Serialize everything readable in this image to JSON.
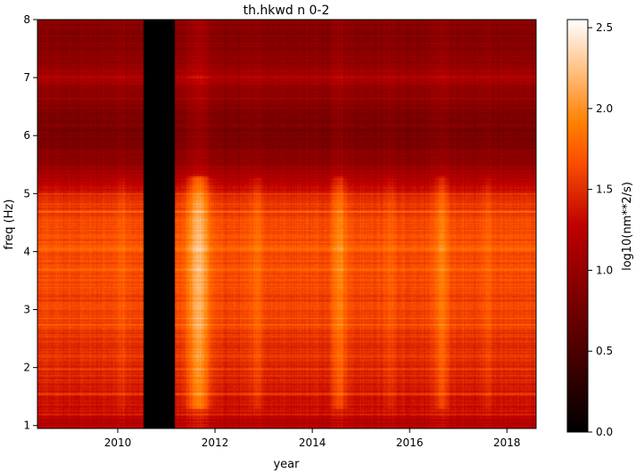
{
  "chart_data": {
    "type": "heatmap",
    "title": "th.hkwd n 0-2",
    "xlabel": "year",
    "ylabel": "freq (Hz)",
    "colorbar_label": "log10(nm**2/s)",
    "colormap": "gist_heat",
    "xlim": [
      2008.35,
      2018.6
    ],
    "ylim": [
      0.95,
      8.0
    ],
    "x_ticks": [
      2010,
      2012,
      2014,
      2016,
      2018
    ],
    "x_tick_labels": [
      "2010",
      "2012",
      "2014",
      "2016",
      "2018"
    ],
    "y_ticks": [
      1,
      2,
      3,
      4,
      5,
      6,
      7,
      8
    ],
    "y_tick_labels": [
      "1",
      "2",
      "3",
      "4",
      "5",
      "6",
      "7",
      "8"
    ],
    "clim": [
      0.0,
      2.55
    ],
    "colorbar_ticks": [
      0.0,
      0.5,
      1.0,
      1.5,
      2.0,
      2.5
    ],
    "colorbar_tick_labels": [
      "0.0",
      "0.5",
      "1.0",
      "1.5",
      "2.0",
      "2.5"
    ],
    "data_gap": [
      2010.53,
      2011.17
    ],
    "freq_profile": [
      {
        "freq": 0.95,
        "value": 1.2
      },
      {
        "freq": 1.3,
        "value": 1.32
      },
      {
        "freq": 1.8,
        "value": 1.45
      },
      {
        "freq": 2.3,
        "value": 1.52
      },
      {
        "freq": 2.8,
        "value": 1.58
      },
      {
        "freq": 3.3,
        "value": 1.62
      },
      {
        "freq": 3.8,
        "value": 1.66
      },
      {
        "freq": 4.1,
        "value": 1.68
      },
      {
        "freq": 4.5,
        "value": 1.62
      },
      {
        "freq": 4.9,
        "value": 1.52
      },
      {
        "freq": 5.2,
        "value": 1.22
      },
      {
        "freq": 5.6,
        "value": 0.95
      },
      {
        "freq": 6.0,
        "value": 0.8
      },
      {
        "freq": 6.4,
        "value": 0.85
      },
      {
        "freq": 6.8,
        "value": 0.96
      },
      {
        "freq": 7.0,
        "value": 1.15
      },
      {
        "freq": 7.3,
        "value": 0.95
      },
      {
        "freq": 7.7,
        "value": 0.88
      },
      {
        "freq": 8.0,
        "value": 0.9
      }
    ],
    "bright_lines_freq": [
      1.2,
      1.55,
      1.98,
      2.2,
      2.75,
      2.85,
      3.7,
      4.05,
      4.7,
      5.0,
      6.65,
      7.02
    ],
    "bright_epochs": [
      {
        "year": 2011.65,
        "width": 0.22,
        "boost": 0.55
      },
      {
        "year": 2012.85,
        "width": 0.12,
        "boost": 0.18
      },
      {
        "year": 2014.55,
        "width": 0.15,
        "boost": 0.3
      },
      {
        "year": 2016.65,
        "width": 0.12,
        "boost": 0.28
      },
      {
        "year": 2015.6,
        "width": 0.1,
        "boost": 0.1
      },
      {
        "year": 2010.1,
        "width": 0.12,
        "boost": 0.08
      },
      {
        "year": 2017.6,
        "width": 0.1,
        "boost": 0.1
      }
    ]
  }
}
